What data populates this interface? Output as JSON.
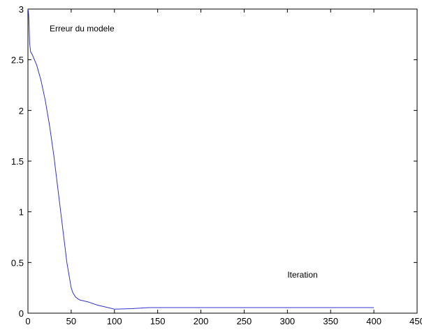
{
  "chart_data": {
    "type": "line",
    "title": "",
    "xlabel": "",
    "ylabel": "",
    "xlim": [
      0,
      450
    ],
    "ylim": [
      0,
      3
    ],
    "x_ticks": [
      0,
      50,
      100,
      150,
      200,
      250,
      300,
      350,
      400,
      450
    ],
    "y_ticks": [
      0,
      0.5,
      1,
      1.5,
      2,
      2.5,
      3
    ],
    "grid": false,
    "annotations": [
      {
        "text": "Erreur du modele",
        "x": 25,
        "y": 2.78
      },
      {
        "text": "Iteration",
        "x": 300,
        "y": 0.35
      }
    ],
    "series": [
      {
        "color": "#3333cc",
        "x": [
          0,
          0.5,
          1,
          2,
          3,
          5,
          10,
          15,
          20,
          25,
          30,
          35,
          40,
          45,
          50,
          52,
          55,
          58,
          60,
          70,
          80,
          90,
          100,
          120,
          140,
          160,
          200,
          250,
          300,
          350,
          400
        ],
        "y": [
          3.0,
          2.98,
          2.92,
          2.66,
          2.58,
          2.55,
          2.45,
          2.3,
          2.1,
          1.85,
          1.55,
          1.2,
          0.85,
          0.5,
          0.25,
          0.2,
          0.16,
          0.14,
          0.13,
          0.11,
          0.08,
          0.06,
          0.04,
          0.045,
          0.055,
          0.055,
          0.055,
          0.055,
          0.055,
          0.055,
          0.055
        ]
      }
    ]
  }
}
